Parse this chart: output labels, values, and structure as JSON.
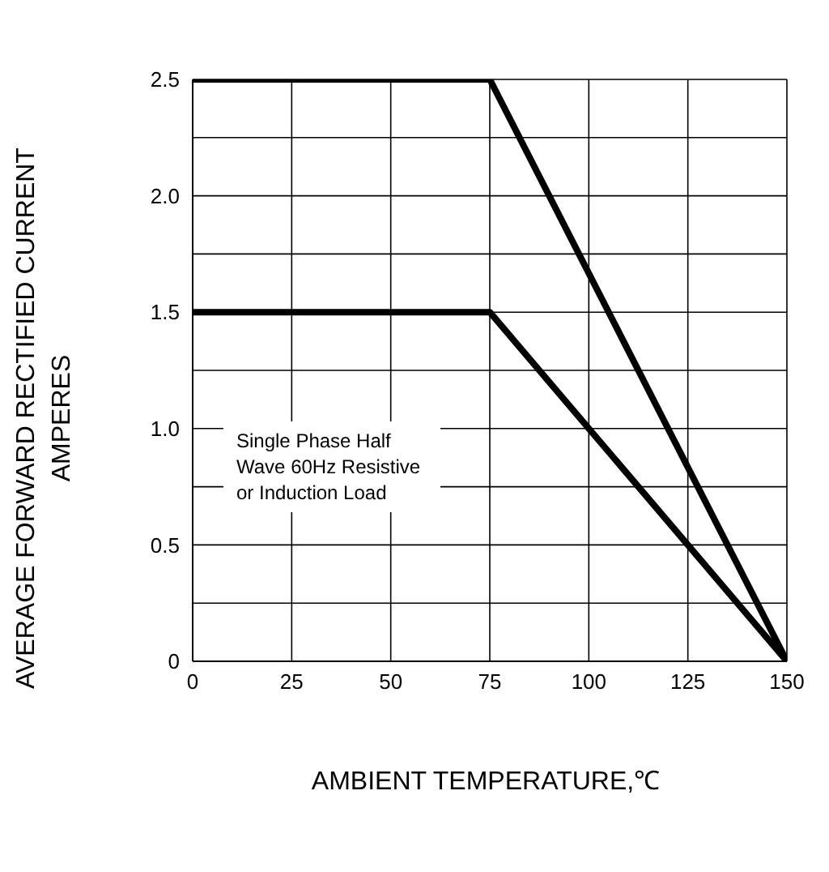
{
  "chart_data": {
    "type": "line",
    "xlabel": "AMBIENT TEMPERATURE,℃",
    "ylabel": "AVERAGE FORWARD RECTIFIED CURRENT AMPERES",
    "xlim": [
      0,
      150
    ],
    "xticks": [
      0,
      25,
      50,
      75,
      100,
      125,
      150
    ],
    "ylim": [
      0,
      2.5
    ],
    "yticks": [
      0,
      {
        "value": 0.25,
        "label": null
      },
      0.5,
      {
        "value": 0.75,
        "label": null
      },
      {
        "value": 1,
        "label": "1.0"
      },
      {
        "value": 1.25,
        "label": null
      },
      1.5,
      {
        "value": 1.75,
        "label": null
      },
      {
        "value": 2,
        "label": "2.0"
      },
      {
        "value": 2.25,
        "label": null
      },
      2.5
    ],
    "grid": true,
    "legend": false,
    "marker": "none",
    "line_style": "solid",
    "annotations": [
      "Single Phase Half Wave 60Hz Resistive or Induction Load"
    ],
    "series": [
      {
        "color": "#000000",
        "x": [
          0,
          75,
          150
        ],
        "values": [
          2.5,
          2.5,
          0
        ]
      },
      {
        "color": "#000000",
        "x": [
          0,
          75,
          150
        ],
        "values": [
          1.5,
          1.5,
          0
        ]
      }
    ]
  }
}
